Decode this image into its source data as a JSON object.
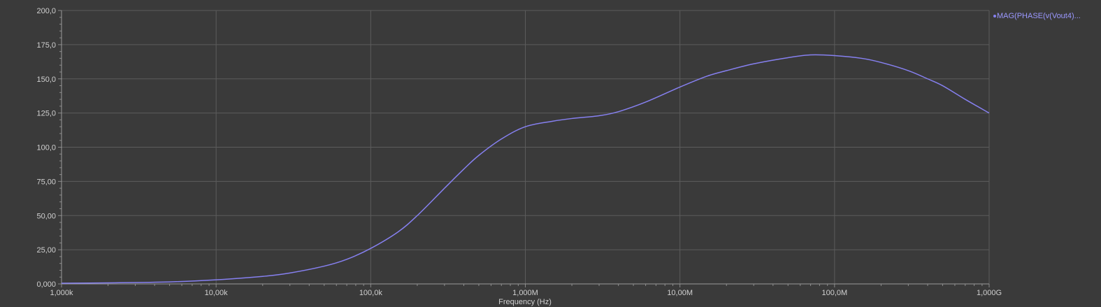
{
  "chart_data": {
    "type": "line",
    "xscale": "log",
    "xlim": [
      1000,
      1000000000
    ],
    "ylim": [
      0,
      200
    ],
    "xlabel": "Frequency (Hz)",
    "ylabel": "",
    "grid": true,
    "legend_position": "top-right",
    "x_tick_values": [
      1000,
      10000,
      100000,
      1000000,
      10000000,
      100000000,
      1000000000
    ],
    "x_tick_labels": [
      "1,000k",
      "10,00k",
      "100,0k",
      "1,000M",
      "10,00M",
      "100,0M",
      "1,000G"
    ],
    "y_tick_values": [
      0,
      25,
      50,
      75,
      100,
      125,
      150,
      175,
      200
    ],
    "y_tick_labels": [
      "0,000",
      "25,00",
      "50,00",
      "75,00",
      "100,0",
      "125,0",
      "150,0",
      "175,0",
      "200,0"
    ],
    "series": [
      {
        "name": "MAG(PHASE(v(Vout4)...",
        "color": "#8680f0",
        "x": [
          1000,
          2000,
          5000,
          10000,
          20000,
          30000,
          50000,
          70000,
          100000,
          150000,
          200000,
          300000,
          400000,
          500000,
          700000,
          1000000,
          1500000,
          2000000,
          3000000,
          4000000,
          6000000,
          10000000,
          15000000,
          20000000,
          30000000,
          50000000,
          70000000,
          100000000,
          150000000,
          200000000,
          300000000,
          400000000,
          500000000,
          700000000,
          1000000000
        ],
        "y": [
          0.5,
          0.8,
          1.5,
          3,
          5.5,
          8,
          13,
          18,
          26,
          38,
          50,
          70,
          84,
          94,
          106,
          115,
          119,
          121,
          123,
          126,
          133,
          144,
          152,
          156,
          161,
          165.5,
          167.5,
          167,
          165,
          162,
          156,
          150,
          145,
          135,
          125
        ]
      }
    ]
  }
}
